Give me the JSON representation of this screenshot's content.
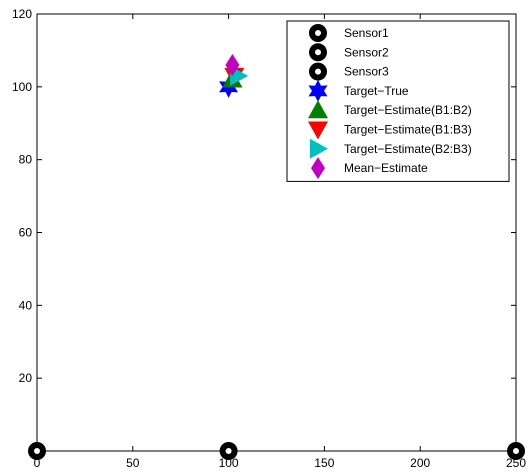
{
  "chart_data": {
    "type": "scatter",
    "title": "",
    "xlabel": "",
    "ylabel": "",
    "xlim": [
      0,
      250
    ],
    "ylim": [
      0,
      120
    ],
    "xticks": [
      0,
      50,
      100,
      150,
      200,
      250
    ],
    "xtick_labels": [
      "0",
      "50",
      "100",
      "150",
      "200",
      "250"
    ],
    "yticks": [
      20,
      40,
      60,
      80,
      100,
      120
    ],
    "ytick_labels": [
      "20",
      "40",
      "60",
      "80",
      "100",
      "120"
    ],
    "grid": false,
    "legend_position": "top-right",
    "series": [
      {
        "name": "Sensor1",
        "marker": "ring",
        "color": "#000000",
        "points": [
          [
            0,
            0
          ]
        ]
      },
      {
        "name": "Sensor2",
        "marker": "ring",
        "color": "#000000",
        "points": [
          [
            100,
            0
          ]
        ]
      },
      {
        "name": "Sensor3",
        "marker": "ring",
        "color": "#000000",
        "points": [
          [
            250,
            0
          ]
        ]
      },
      {
        "name": "Target−True",
        "marker": "hexagram",
        "color": "#0000ff",
        "points": [
          [
            100,
            100
          ]
        ]
      },
      {
        "name": "Target−Estimate(B1:B2)",
        "marker": "triangle-up",
        "color": "#008000",
        "points": [
          [
            102,
            102
          ]
        ]
      },
      {
        "name": "Target−Estimate(B1:B3)",
        "marker": "triangle-down",
        "color": "#ff0000",
        "points": [
          [
            103,
            103
          ]
        ]
      },
      {
        "name": "Target−Estimate(B2:B3)",
        "marker": "triangle-right",
        "color": "#00bfbf",
        "points": [
          [
            105,
            103
          ]
        ]
      },
      {
        "name": "Mean−Estimate",
        "marker": "diamond",
        "color": "#bf00bf",
        "points": [
          [
            102,
            106
          ]
        ]
      }
    ]
  }
}
